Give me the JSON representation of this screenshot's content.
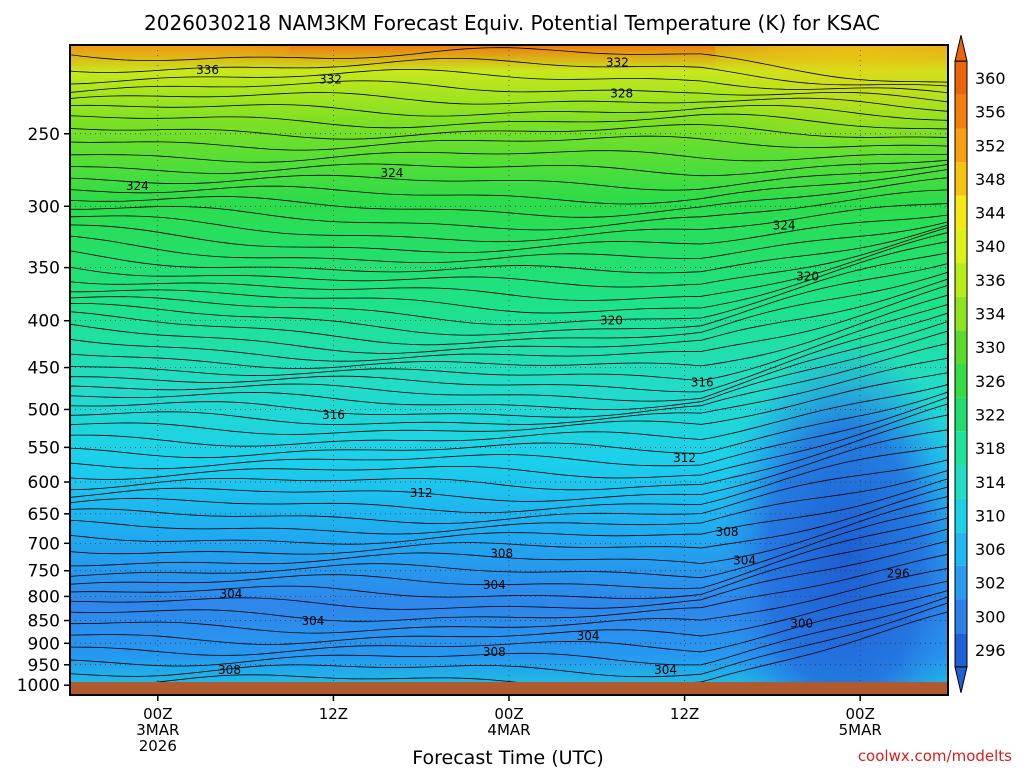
{
  "chart_data": {
    "type": "heatmap",
    "title": "2026030218 NAM3KM Forecast Equiv. Potential Temperature (K) for KSAC",
    "xlabel": "Forecast Time (UTC)",
    "ylabel": "",
    "x_tick_labels": [
      {
        "hour": 0,
        "lines": [
          "00Z",
          "3MAR",
          "2026"
        ]
      },
      {
        "hour": 12,
        "lines": [
          "12Z"
        ]
      },
      {
        "hour": 24,
        "lines": [
          "00Z",
          "4MAR"
        ]
      },
      {
        "hour": 36,
        "lines": [
          "12Z"
        ]
      },
      {
        "hour": 48,
        "lines": [
          "00Z",
          "5MAR"
        ]
      }
    ],
    "xlim_hours": [
      -6,
      54
    ],
    "y_axis": {
      "scale": "log-pressure",
      "units": "hPa",
      "range": [
        1025,
        200
      ],
      "reversed": true
    },
    "y_ticks": [
      250,
      300,
      350,
      400,
      450,
      500,
      550,
      600,
      650,
      700,
      750,
      800,
      850,
      900,
      950,
      1000
    ],
    "colorbar": {
      "levels": [
        296,
        300,
        302,
        306,
        310,
        314,
        318,
        322,
        326,
        330,
        334,
        336,
        340,
        344,
        348,
        352,
        356,
        360
      ],
      "colors": [
        "#1e60d6",
        "#2d7fe8",
        "#2a9cf0",
        "#20b8f0",
        "#1cd0e6",
        "#22dcc4",
        "#1ee29a",
        "#22dc6e",
        "#34dc46",
        "#5cdc2a",
        "#8ee420",
        "#b8ec1a",
        "#dcf01a",
        "#f6e816",
        "#f8c412",
        "#f8a010",
        "#f47e0c",
        "#ec640a"
      ]
    },
    "contour_labels": [
      {
        "text": "336",
        "hour": 3.4,
        "p": 213
      },
      {
        "text": "332",
        "hour": 11.8,
        "p": 218
      },
      {
        "text": "332",
        "hour": 31.4,
        "p": 209
      },
      {
        "text": "328",
        "hour": 31.7,
        "p": 226
      },
      {
        "text": "324",
        "hour": -1.4,
        "p": 285
      },
      {
        "text": "324",
        "hour": 16.0,
        "p": 276
      },
      {
        "text": "324",
        "hour": 42.8,
        "p": 315
      },
      {
        "text": "320",
        "hour": 44.4,
        "p": 358
      },
      {
        "text": "320",
        "hour": 31.0,
        "p": 400
      },
      {
        "text": "316",
        "hour": 37.2,
        "p": 467
      },
      {
        "text": "316",
        "hour": 12.0,
        "p": 507
      },
      {
        "text": "312",
        "hour": 36.0,
        "p": 565
      },
      {
        "text": "312",
        "hour": 18.0,
        "p": 617
      },
      {
        "text": "308",
        "hour": 38.9,
        "p": 680
      },
      {
        "text": "308",
        "hour": 23.5,
        "p": 718
      },
      {
        "text": "304",
        "hour": 40.1,
        "p": 731
      },
      {
        "text": "304",
        "hour": 23.0,
        "p": 777
      },
      {
        "text": "304",
        "hour": 5.0,
        "p": 795
      },
      {
        "text": "304",
        "hour": 10.6,
        "p": 851
      },
      {
        "text": "304",
        "hour": 29.4,
        "p": 884
      },
      {
        "text": "304",
        "hour": 34.7,
        "p": 963
      },
      {
        "text": "300",
        "hour": 44.0,
        "p": 856
      },
      {
        "text": "296",
        "hour": 50.6,
        "p": 755
      },
      {
        "text": "308",
        "hour": 23.0,
        "p": 920
      },
      {
        "text": "308",
        "hour": 4.9,
        "p": 962
      }
    ],
    "ground_color": "#b05a2f",
    "grid": true
  },
  "credit": "coolwx.com/modelts"
}
